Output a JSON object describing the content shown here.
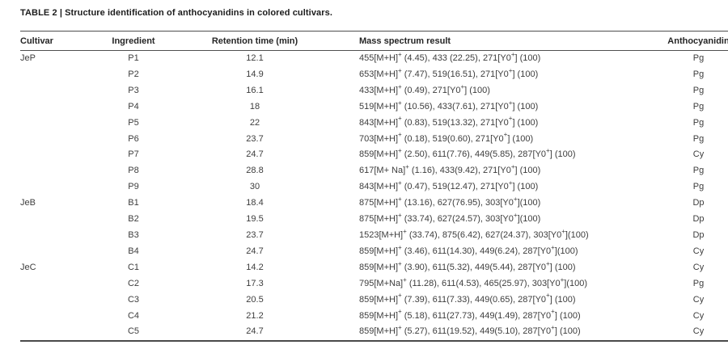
{
  "table": {
    "title_label": "TABLE 2 |",
    "title_text": "Structure identification of anthocyanidins in colored cultivars.",
    "columns": [
      {
        "key": "cultivar",
        "label": "Cultivar"
      },
      {
        "key": "ingredient",
        "label": "Ingredient"
      },
      {
        "key": "retention",
        "label": "Retention time (min)"
      },
      {
        "key": "mass",
        "label": "Mass spectrum result"
      },
      {
        "key": "anthocyanidin",
        "label": "Anthocyanidin"
      }
    ],
    "rows": [
      {
        "cultivar": "JeP",
        "ingredient": "P1",
        "retention": "12.1",
        "mass": "455[M+H]^+ (4.45), 433 (22.25), 271[Y0^+] (100)",
        "anthocyanidin": "Pg"
      },
      {
        "cultivar": "",
        "ingredient": "P2",
        "retention": "14.9",
        "mass": "653[M+H]^+ (7.47), 519(16.51), 271[Y0^+] (100)",
        "anthocyanidin": "Pg"
      },
      {
        "cultivar": "",
        "ingredient": "P3",
        "retention": "16.1",
        "mass": "433[M+H]^+ (0.49), 271[Y0^+] (100)",
        "anthocyanidin": "Pg"
      },
      {
        "cultivar": "",
        "ingredient": "P4",
        "retention": "18",
        "mass": "519[M+H]^+ (10.56), 433(7.61), 271[Y0^+] (100)",
        "anthocyanidin": "Pg"
      },
      {
        "cultivar": "",
        "ingredient": "P5",
        "retention": "22",
        "mass": "843[M+H]^+ (0.83), 519(13.32), 271[Y0^+] (100)",
        "anthocyanidin": "Pg"
      },
      {
        "cultivar": "",
        "ingredient": "P6",
        "retention": "23.7",
        "mass": "703[M+H]^+ (0.18), 519(0.60), 271[Y0^+] (100)",
        "anthocyanidin": "Pg"
      },
      {
        "cultivar": "",
        "ingredient": "P7",
        "retention": "24.7",
        "mass": "859[M+H]^+ (2.50), 611(7.76), 449(5.85), 287[Y0^+] (100)",
        "anthocyanidin": "Cy"
      },
      {
        "cultivar": "",
        "ingredient": "P8",
        "retention": "28.8",
        "mass": "617[M+ Na]^+ (1.16), 433(9.42), 271[Y0^+] (100)",
        "anthocyanidin": "Pg"
      },
      {
        "cultivar": "",
        "ingredient": "P9",
        "retention": "30",
        "mass": "843[M+H]^+ (0.47), 519(12.47), 271[Y0^+] (100)",
        "anthocyanidin": "Pg"
      },
      {
        "cultivar": "JeB",
        "ingredient": "B1",
        "retention": "18.4",
        "mass": "875[M+H]^+ (13.16), 627(76.95), 303[Y0^+](100)",
        "anthocyanidin": "Dp"
      },
      {
        "cultivar": "",
        "ingredient": "B2",
        "retention": "19.5",
        "mass": "875[M+H]^+ (33.74), 627(24.57), 303[Y0^+](100)",
        "anthocyanidin": "Dp"
      },
      {
        "cultivar": "",
        "ingredient": "B3",
        "retention": "23.7",
        "mass": "1523[M+H]^+ (33.74), 875(6.42), 627(24.37), 303[Y0^+](100)",
        "anthocyanidin": "Dp"
      },
      {
        "cultivar": "",
        "ingredient": "B4",
        "retention": "24.7",
        "mass": "859[M+H]^+ (3.46), 611(14.30), 449(6.24), 287[Y0^+](100)",
        "anthocyanidin": "Cy"
      },
      {
        "cultivar": "JeC",
        "ingredient": "C1",
        "retention": "14.2",
        "mass": "859[M+H]^+ (3.90), 611(5.32), 449(5.44), 287[Y0^+] (100)",
        "anthocyanidin": "Cy"
      },
      {
        "cultivar": "",
        "ingredient": "C2",
        "retention": "17.3",
        "mass": "795[M+Na]^+ (11.28), 611(4.53), 465(25.97), 303[Y0^+](100)",
        "anthocyanidin": "Pg"
      },
      {
        "cultivar": "",
        "ingredient": "C3",
        "retention": "20.5",
        "mass": "859[M+H]^+ (7.39), 611(7.33), 449(0.65), 287[Y0^+] (100)",
        "anthocyanidin": "Cy"
      },
      {
        "cultivar": "",
        "ingredient": "C4",
        "retention": "21.2",
        "mass": "859[M+H]^+ (5.18), 611(27.73), 449(1.49), 287[Y0^+] (100)",
        "anthocyanidin": "Cy"
      },
      {
        "cultivar": "",
        "ingredient": "C5",
        "retention": "24.7",
        "mass": "859[M+H]^+ (5.27), 611(19.52), 449(5.10), 287[Y0^+] (100)",
        "anthocyanidin": "Cy"
      }
    ]
  },
  "colors": {
    "title_text": "#1c1c1c",
    "header_text": "#252525",
    "body_text": "#3d3d3d",
    "rule": "#4f4f4f"
  }
}
